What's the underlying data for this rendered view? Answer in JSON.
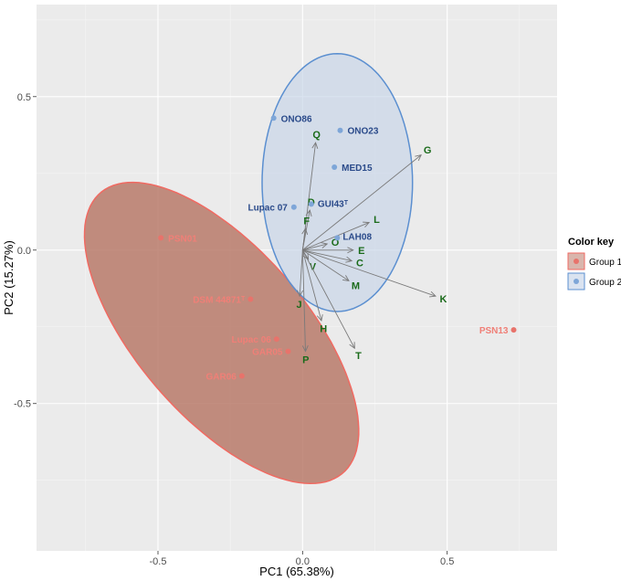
{
  "chart_data": {
    "type": "scatter",
    "xlabel": "PC1 (65.38%)",
    "ylabel": "PC2 (15.27%)",
    "xlim": [
      -0.92,
      0.88
    ],
    "ylim": [
      -0.98,
      0.8
    ],
    "xticks": [
      -0.5,
      0.0,
      0.5
    ],
    "yticks": [
      -0.5,
      0.0,
      0.5
    ],
    "xtick_labels": [
      "-0.5",
      "0.0",
      "0.5"
    ],
    "ytick_labels": [
      "-0.5",
      "0.0",
      "0.5"
    ],
    "grid": true,
    "legend": {
      "title": "Color key",
      "placement": "right",
      "entries": [
        "Group 1",
        "Group 2"
      ]
    },
    "series": [
      {
        "name": "Group 1",
        "color": "#e8736b",
        "label_color": "#f07f77",
        "ellipse": {
          "center": [
            -0.28,
            -0.27
          ],
          "rx": 0.62,
          "ry": 0.285,
          "angle_deg": 46.5,
          "fill": "#b97a6a",
          "stroke": "#f06a62"
        },
        "points": [
          {
            "label": "PSN01",
            "x": -0.49,
            "y": 0.04
          },
          {
            "label": "DSM 44871ᵀ",
            "x": -0.18,
            "y": -0.16
          },
          {
            "label": "Lupac 06",
            "x": -0.09,
            "y": -0.29
          },
          {
            "label": "GAR05",
            "x": -0.05,
            "y": -0.33
          },
          {
            "label": "GAR06",
            "x": -0.21,
            "y": -0.41
          },
          {
            "label": "PSN13",
            "x": 0.73,
            "y": -0.26
          }
        ]
      },
      {
        "name": "Group 2",
        "color": "#7ea6d8",
        "label_color": "#2a4a8a",
        "ellipse": {
          "center": [
            0.12,
            0.22
          ],
          "rx": 0.26,
          "ry": 0.42,
          "angle_deg": 0,
          "fill": "#c6d4e8",
          "stroke": "#5b8fd0"
        },
        "points": [
          {
            "label": "ONO86",
            "x": -0.1,
            "y": 0.43
          },
          {
            "label": "ONO23",
            "x": 0.13,
            "y": 0.39
          },
          {
            "label": "MED15",
            "x": 0.11,
            "y": 0.27
          },
          {
            "label": "GUI43ᵀ",
            "x": 0.03,
            "y": 0.15
          },
          {
            "label": "Lupac 07",
            "x": -0.03,
            "y": 0.14
          },
          {
            "label": "LAH08",
            "x": 0.12,
            "y": 0.04
          }
        ]
      }
    ],
    "loadings": [
      {
        "label": "Q",
        "x": 0.045,
        "y": 0.35
      },
      {
        "label": "G",
        "x": 0.41,
        "y": 0.31
      },
      {
        "label": "D",
        "x": 0.025,
        "y": 0.13
      },
      {
        "label": "L",
        "x": 0.23,
        "y": 0.09
      },
      {
        "label": "F",
        "x": 0.01,
        "y": 0.07
      },
      {
        "label": "O",
        "x": 0.085,
        "y": 0.02
      },
      {
        "label": "E",
        "x": 0.175,
        "y": 0.0
      },
      {
        "label": "C",
        "x": 0.17,
        "y": -0.035
      },
      {
        "label": "V",
        "x": 0.02,
        "y": -0.03
      },
      {
        "label": "M",
        "x": 0.16,
        "y": -0.1
      },
      {
        "label": "K",
        "x": 0.46,
        "y": -0.15
      },
      {
        "label": "J",
        "x": -0.01,
        "y": -0.15
      },
      {
        "label": "H",
        "x": 0.065,
        "y": -0.23
      },
      {
        "label": "P",
        "x": 0.01,
        "y": -0.33
      },
      {
        "label": "T",
        "x": 0.18,
        "y": -0.32
      }
    ]
  }
}
